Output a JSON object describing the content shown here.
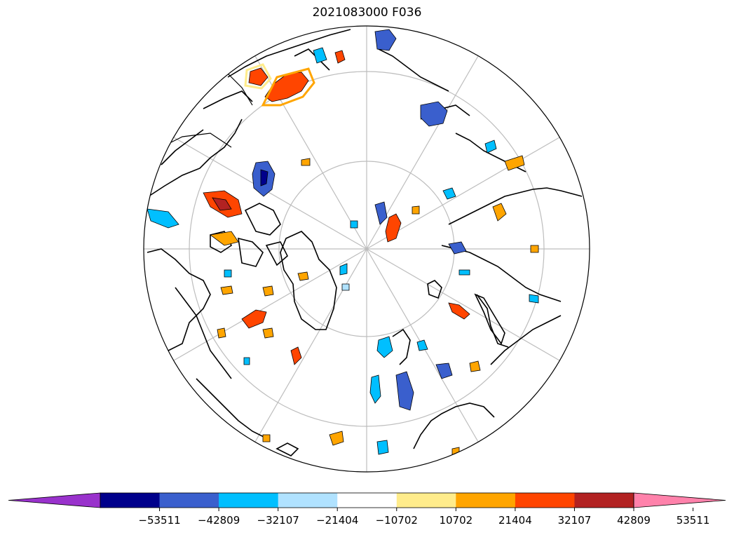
{
  "title": "2021083000 F036",
  "colorbar": {
    "tick_labels": [
      "−53511",
      "−42809",
      "−32107",
      "−21404",
      "−10702",
      "10702",
      "21404",
      "32107",
      "42809",
      "53511"
    ],
    "colors": [
      "#9932cc",
      "#00008b",
      "#3a5fcd",
      "#00bfff",
      "#b0e2ff",
      "#ffffff",
      "#ffec8b",
      "#ffa500",
      "#ff4500",
      "#b22222",
      "#ff82ab"
    ],
    "extend": "both"
  },
  "map": {
    "projection": "north-polar-stereographic",
    "gridlines": true,
    "coastlines": true,
    "field_colors": {
      "light_yellow": "#ffec8b",
      "orange": "#ffa500",
      "red_orange": "#ff4500",
      "dark_red": "#b22222",
      "light_blue": "#b0e2ff",
      "cyan": "#00bfff",
      "royal_blue": "#3a5fcd",
      "navy": "#00008b"
    }
  }
}
